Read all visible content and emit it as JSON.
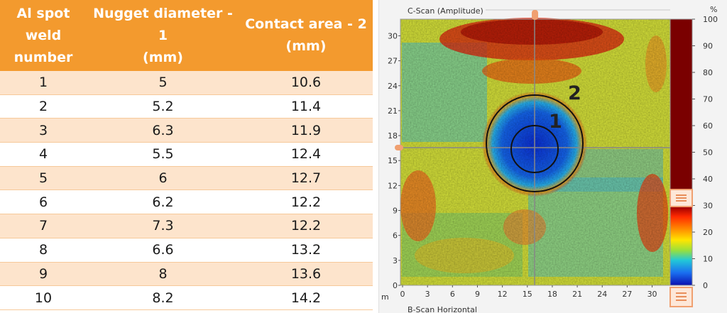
{
  "table": {
    "headers": [
      "Al spot weld number",
      "Nugget diameter - 1 (mm)",
      "Contact area - 2 (mm)"
    ],
    "header_lines": [
      [
        "Al spot",
        "weld",
        "number"
      ],
      [
        "Nugget diameter - 1",
        "(mm)"
      ],
      [
        "Contact area - 2",
        "(mm)"
      ]
    ],
    "rows": [
      [
        "1",
        "5",
        "10.6"
      ],
      [
        "2",
        "5.2",
        "11.4"
      ],
      [
        "3",
        "6.3",
        "11.9"
      ],
      [
        "4",
        "5.5",
        "12.4"
      ],
      [
        "5",
        "6",
        "12.7"
      ],
      [
        "6",
        "6.2",
        "12.2"
      ],
      [
        "7",
        "7.3",
        "12.2"
      ],
      [
        "8",
        "6.6",
        "13.2"
      ],
      [
        "9",
        "8",
        "13.6"
      ],
      [
        "10",
        "8.2",
        "14.2"
      ]
    ]
  },
  "cscan": {
    "title": "C-Scan (Amplitude)",
    "x_unit": "m",
    "x_axis_label": "B-Scan Horizontal",
    "x_ticks": [
      "0",
      "3",
      "6",
      "9",
      "12",
      "15",
      "18",
      "21",
      "24",
      "27",
      "30"
    ],
    "y_ticks": [
      "0",
      "3",
      "6",
      "9",
      "12",
      "15",
      "18",
      "21",
      "24",
      "27",
      "30"
    ],
    "colorbar_unit": "%",
    "colorbar_ticks": [
      "100",
      "90",
      "80",
      "70",
      "60",
      "50",
      "40",
      "30",
      "20",
      "10",
      "0"
    ],
    "circle_labels": [
      "1",
      "2"
    ],
    "colors": {
      "orange_header": "#f39a2e",
      "row_tint": "#fde4cc",
      "nugget": "#0a3fe0",
      "edge": "#e23a1a"
    }
  }
}
